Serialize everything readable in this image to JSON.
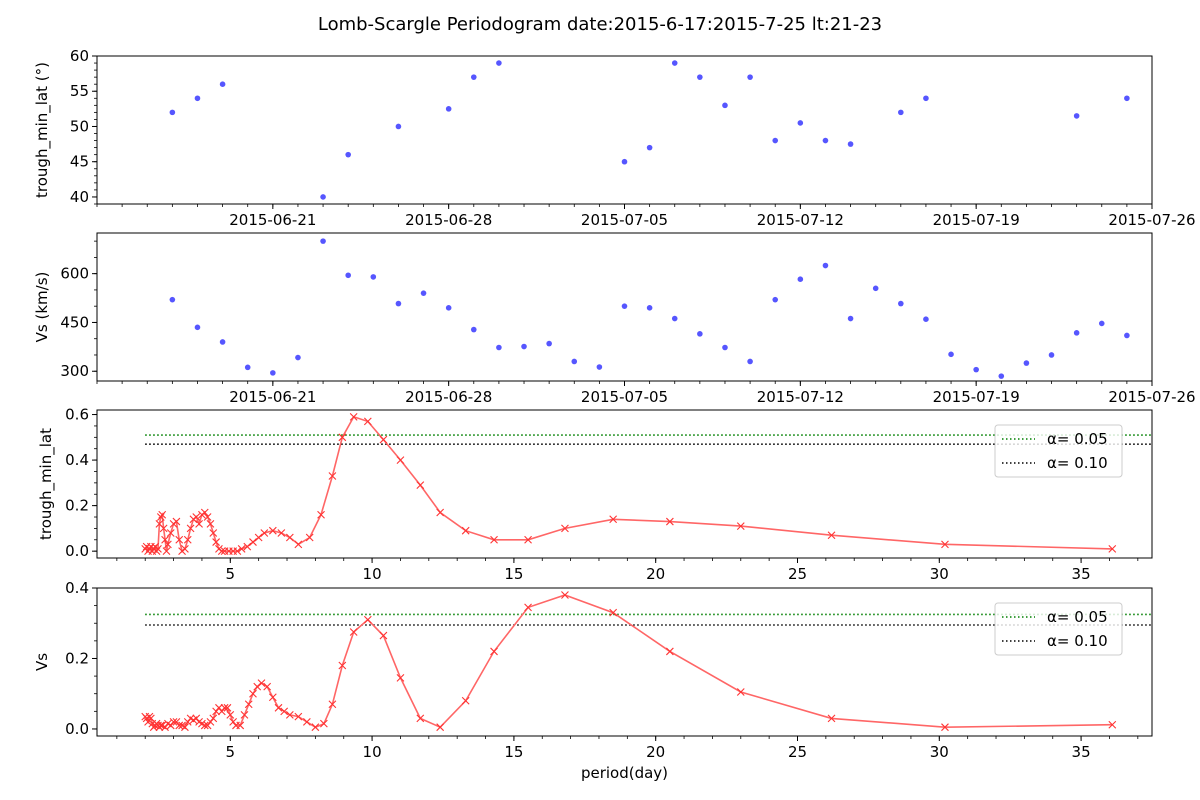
{
  "figure": {
    "title": "Lomb-Scargle Periodogram    date:2015-6-17:2015-7-25   lt:21-23"
  },
  "colors": {
    "scatter": "#4444ff",
    "periodogram": "#ff6666",
    "alpha05": "#008000",
    "alpha10": "#000000"
  },
  "chart_data": [
    {
      "type": "scatter",
      "ylabel": "trough_min_lat (°)",
      "xaxis": "date",
      "ylim": [
        39,
        60
      ],
      "yticks": [
        40,
        45,
        50,
        55,
        60
      ],
      "xlim": [
        "2015-06-14",
        "2015-07-26"
      ],
      "xticks": [
        "2015-06-21",
        "2015-06-28",
        "2015-07-05",
        "2015-07-12",
        "2015-07-19",
        "2015-07-26"
      ],
      "points": [
        {
          "x": "2015-06-17",
          "y": 52
        },
        {
          "x": "2015-06-18",
          "y": 54
        },
        {
          "x": "2015-06-19",
          "y": 56
        },
        {
          "x": "2015-06-23",
          "y": 40
        },
        {
          "x": "2015-06-24",
          "y": 46
        },
        {
          "x": "2015-06-26",
          "y": 50
        },
        {
          "x": "2015-06-28",
          "y": 52.5
        },
        {
          "x": "2015-06-29",
          "y": 57
        },
        {
          "x": "2015-06-30",
          "y": 59
        },
        {
          "x": "2015-07-05",
          "y": 45
        },
        {
          "x": "2015-07-06",
          "y": 47
        },
        {
          "x": "2015-07-07",
          "y": 59
        },
        {
          "x": "2015-07-08",
          "y": 57
        },
        {
          "x": "2015-07-09",
          "y": 53
        },
        {
          "x": "2015-07-10",
          "y": 57
        },
        {
          "x": "2015-07-11",
          "y": 48
        },
        {
          "x": "2015-07-12",
          "y": 50.5
        },
        {
          "x": "2015-07-13",
          "y": 48
        },
        {
          "x": "2015-07-14",
          "y": 47.5
        },
        {
          "x": "2015-07-16",
          "y": 52
        },
        {
          "x": "2015-07-17",
          "y": 54
        },
        {
          "x": "2015-07-23",
          "y": 51.5
        },
        {
          "x": "2015-07-25",
          "y": 54
        }
      ]
    },
    {
      "type": "scatter",
      "ylabel": "Vs (km/s)",
      "xaxis": "date",
      "ylim": [
        270,
        725
      ],
      "yticks": [
        300,
        450,
        600
      ],
      "xlim": [
        "2015-06-14",
        "2015-07-26"
      ],
      "xticks": [
        "2015-06-21",
        "2015-06-28",
        "2015-07-05",
        "2015-07-12",
        "2015-07-19",
        "2015-07-26"
      ],
      "points": [
        {
          "x": "2015-06-17",
          "y": 520
        },
        {
          "x": "2015-06-18",
          "y": 435
        },
        {
          "x": "2015-06-19",
          "y": 390
        },
        {
          "x": "2015-06-20",
          "y": 312
        },
        {
          "x": "2015-06-21",
          "y": 295
        },
        {
          "x": "2015-06-22",
          "y": 342
        },
        {
          "x": "2015-06-23",
          "y": 700
        },
        {
          "x": "2015-06-24",
          "y": 595
        },
        {
          "x": "2015-06-25",
          "y": 590
        },
        {
          "x": "2015-06-26",
          "y": 508
        },
        {
          "x": "2015-06-27",
          "y": 540
        },
        {
          "x": "2015-06-28",
          "y": 495
        },
        {
          "x": "2015-06-29",
          "y": 428
        },
        {
          "x": "2015-06-30",
          "y": 373
        },
        {
          "x": "2015-07-01",
          "y": 376
        },
        {
          "x": "2015-07-02",
          "y": 385
        },
        {
          "x": "2015-07-03",
          "y": 330
        },
        {
          "x": "2015-07-04",
          "y": 313
        },
        {
          "x": "2015-07-05",
          "y": 500
        },
        {
          "x": "2015-07-06",
          "y": 495
        },
        {
          "x": "2015-07-07",
          "y": 462
        },
        {
          "x": "2015-07-08",
          "y": 415
        },
        {
          "x": "2015-07-09",
          "y": 373
        },
        {
          "x": "2015-07-10",
          "y": 330
        },
        {
          "x": "2015-07-11",
          "y": 520
        },
        {
          "x": "2015-07-12",
          "y": 583
        },
        {
          "x": "2015-07-13",
          "y": 625
        },
        {
          "x": "2015-07-14",
          "y": 462
        },
        {
          "x": "2015-07-15",
          "y": 555
        },
        {
          "x": "2015-07-16",
          "y": 508
        },
        {
          "x": "2015-07-17",
          "y": 460
        },
        {
          "x": "2015-07-18",
          "y": 352
        },
        {
          "x": "2015-07-19",
          "y": 305
        },
        {
          "x": "2015-07-20",
          "y": 285
        },
        {
          "x": "2015-07-21",
          "y": 325
        },
        {
          "x": "2015-07-22",
          "y": 350
        },
        {
          "x": "2015-07-23",
          "y": 418
        },
        {
          "x": "2015-07-24",
          "y": 447
        },
        {
          "x": "2015-07-25",
          "y": 410
        }
      ]
    },
    {
      "type": "line",
      "ylabel": "trough_min_lat",
      "xlim": [
        0.3,
        37.5
      ],
      "ylim": [
        -0.03,
        0.62
      ],
      "xticks": [
        5,
        10,
        15,
        20,
        25,
        30,
        35
      ],
      "yticks": [
        0.0,
        0.2,
        0.4,
        0.6
      ],
      "yticklabels": [
        "0.0",
        "0.2",
        "0.4",
        "0.6"
      ],
      "legend": "upper-right",
      "thresholds": [
        {
          "label": "α= 0.05",
          "value": 0.51,
          "x": [
            2.0,
            38.0
          ],
          "color": "#008000"
        },
        {
          "label": "α= 0.10",
          "value": 0.47,
          "x": [
            2.0,
            38.0
          ],
          "color": "#000000"
        }
      ],
      "series": [
        {
          "x": [
            2.0,
            2.05,
            2.1,
            2.15,
            2.2,
            2.25,
            2.3,
            2.35,
            2.4,
            2.45,
            2.5,
            2.55,
            2.6,
            2.65,
            2.7,
            2.75,
            2.8,
            2.9,
            3.0,
            3.1,
            3.2,
            3.3,
            3.4,
            3.5,
            3.6,
            3.7,
            3.8,
            3.9,
            4.0,
            4.1,
            4.2,
            4.3,
            4.4,
            4.5,
            4.6,
            4.7,
            4.8,
            4.95,
            5.1,
            5.25,
            5.4,
            5.6,
            5.8,
            6.0,
            6.2,
            6.5,
            6.8,
            7.1,
            7.4,
            7.8,
            8.2,
            8.6,
            8.95,
            9.35,
            9.85,
            10.4,
            11.0,
            11.7,
            12.4,
            13.3,
            14.3,
            15.5,
            16.8,
            18.5,
            20.5,
            23.0,
            26.2,
            30.2,
            36.1
          ],
          "y": [
            0.01,
            0.02,
            0.0,
            0.01,
            0.02,
            0.0,
            0.01,
            0.02,
            0.0,
            0.01,
            0.12,
            0.15,
            0.16,
            0.1,
            0.05,
            0.0,
            0.03,
            0.08,
            0.12,
            0.13,
            0.05,
            0.0,
            0.01,
            0.05,
            0.1,
            0.14,
            0.15,
            0.12,
            0.16,
            0.17,
            0.15,
            0.12,
            0.08,
            0.04,
            0.01,
            0.0,
            0.0,
            0.0,
            0.0,
            0.0,
            0.01,
            0.02,
            0.04,
            0.06,
            0.08,
            0.09,
            0.08,
            0.06,
            0.03,
            0.06,
            0.16,
            0.33,
            0.5,
            0.59,
            0.57,
            0.49,
            0.4,
            0.29,
            0.17,
            0.09,
            0.05,
            0.05,
            0.1,
            0.14,
            0.13,
            0.11,
            0.07,
            0.03,
            0.01
          ]
        }
      ]
    },
    {
      "type": "line",
      "ylabel": "Vs",
      "xlabel": "period(day)",
      "xlim": [
        0.3,
        37.5
      ],
      "ylim": [
        -0.02,
        0.4
      ],
      "xticks": [
        5,
        10,
        15,
        20,
        25,
        30,
        35
      ],
      "yticks": [
        0.0,
        0.2,
        0.4
      ],
      "yticklabels": [
        "0.0",
        "0.2",
        "0.4"
      ],
      "legend": "upper-right",
      "thresholds": [
        {
          "label": "α= 0.05",
          "value": 0.325,
          "x": [
            2.0,
            38.0
          ],
          "color": "#008000"
        },
        {
          "label": "α= 0.10",
          "value": 0.295,
          "x": [
            2.0,
            38.0
          ],
          "color": "#000000"
        }
      ],
      "series": [
        {
          "x": [
            2.0,
            2.05,
            2.1,
            2.15,
            2.2,
            2.25,
            2.3,
            2.35,
            2.4,
            2.45,
            2.5,
            2.55,
            2.6,
            2.7,
            2.8,
            2.9,
            3.0,
            3.1,
            3.2,
            3.3,
            3.4,
            3.5,
            3.6,
            3.7,
            3.8,
            3.9,
            4.0,
            4.1,
            4.2,
            4.3,
            4.4,
            4.5,
            4.6,
            4.7,
            4.8,
            4.9,
            5.0,
            5.1,
            5.2,
            5.35,
            5.5,
            5.65,
            5.8,
            5.95,
            6.1,
            6.3,
            6.5,
            6.7,
            6.9,
            7.1,
            7.4,
            7.7,
            8.0,
            8.3,
            8.6,
            8.95,
            9.35,
            9.85,
            10.4,
            11.0,
            11.7,
            12.4,
            13.3,
            14.3,
            15.5,
            16.8,
            18.5,
            20.5,
            23.0,
            26.2,
            30.2,
            36.1
          ],
          "y": [
            0.035,
            0.03,
            0.02,
            0.035,
            0.03,
            0.015,
            0.005,
            0.01,
            0.015,
            0.01,
            0.005,
            0.01,
            0.01,
            0.005,
            0.015,
            0.01,
            0.02,
            0.02,
            0.01,
            0.01,
            0.005,
            0.02,
            0.03,
            0.025,
            0.03,
            0.02,
            0.015,
            0.01,
            0.01,
            0.02,
            0.03,
            0.05,
            0.06,
            0.05,
            0.06,
            0.06,
            0.04,
            0.02,
            0.01,
            0.01,
            0.04,
            0.07,
            0.1,
            0.12,
            0.13,
            0.12,
            0.09,
            0.06,
            0.05,
            0.04,
            0.035,
            0.02,
            0.005,
            0.015,
            0.07,
            0.18,
            0.275,
            0.31,
            0.265,
            0.145,
            0.03,
            0.005,
            0.08,
            0.22,
            0.345,
            0.38,
            0.33,
            0.22,
            0.105,
            0.03,
            0.005,
            0.012
          ]
        }
      ]
    }
  ]
}
